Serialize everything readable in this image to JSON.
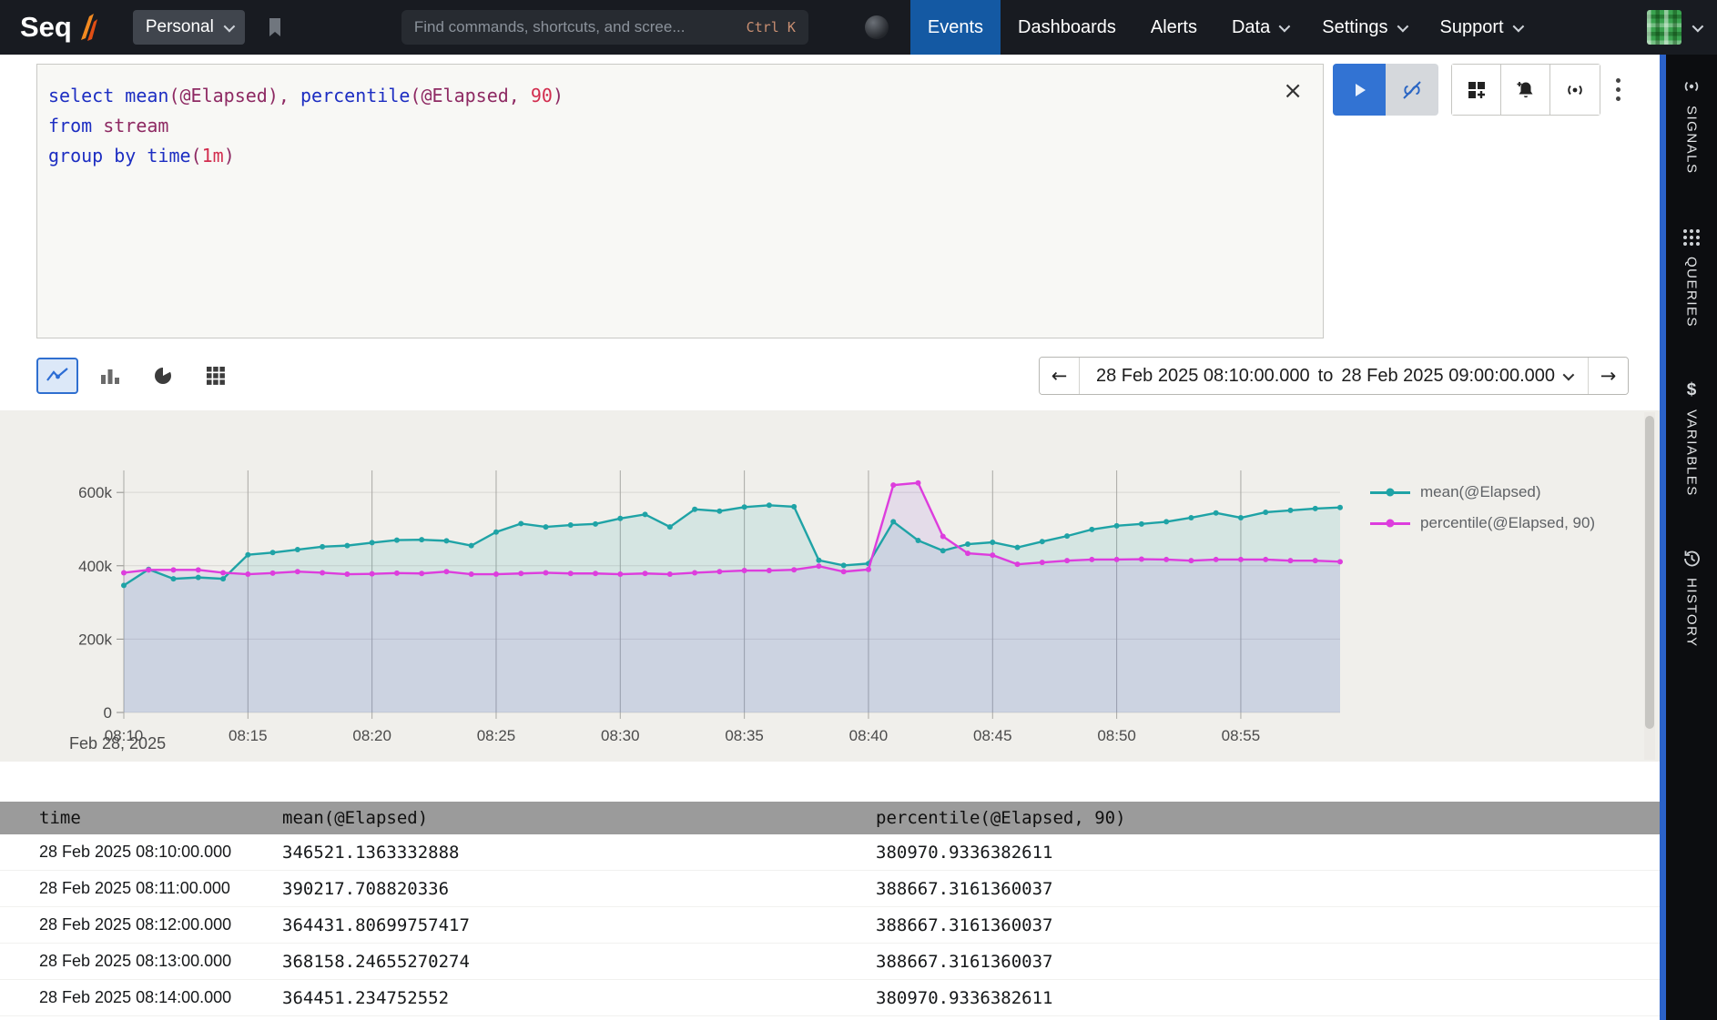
{
  "navbar": {
    "logo": "Seq",
    "workspace_button": "Personal",
    "search": {
      "placeholder": "Find commands, shortcuts, and scree...",
      "shortcut": "Ctrl K"
    },
    "items": [
      {
        "label": "Events",
        "active": true,
        "dropdown": false
      },
      {
        "label": "Dashboards",
        "active": false,
        "dropdown": false
      },
      {
        "label": "Alerts",
        "active": false,
        "dropdown": false
      },
      {
        "label": "Data",
        "active": false,
        "dropdown": true
      },
      {
        "label": "Settings",
        "active": false,
        "dropdown": true
      },
      {
        "label": "Support",
        "active": false,
        "dropdown": true
      }
    ]
  },
  "query_editor": {
    "colors": {
      "kw": "#1d2ec2",
      "id": "#8e2a63",
      "num": "#d22d4e"
    },
    "lines": [
      [
        {
          "t": "select ",
          "c": "kw"
        },
        {
          "t": "mean",
          "c": "kw"
        },
        {
          "t": "(@Elapsed)",
          "c": "id"
        },
        {
          "t": ", ",
          "c": "id"
        },
        {
          "t": "percentile",
          "c": "kw"
        },
        {
          "t": "(@Elapsed, ",
          "c": "id"
        },
        {
          "t": "90",
          "c": "num"
        },
        {
          "t": ")",
          "c": "id"
        }
      ],
      [
        {
          "t": "from ",
          "c": "kw"
        },
        {
          "t": "stream",
          "c": "id"
        }
      ],
      [
        {
          "t": "group by ",
          "c": "kw"
        },
        {
          "t": "time",
          "c": "kw"
        },
        {
          "t": "(",
          "c": "id"
        },
        {
          "t": "1m",
          "c": "num"
        },
        {
          "t": ")",
          "c": "id"
        }
      ]
    ]
  },
  "toolbar": {
    "range_from": "28 Feb 2025 08:10:00.000",
    "range_joiner": "to",
    "range_to": "28 Feb 2025 09:00:00.000",
    "prev_arrow": "←",
    "next_arrow": "→"
  },
  "chart_data": {
    "type": "line",
    "title": "",
    "xlabel": "",
    "ylabel": "",
    "caption": "Feb 28, 2025",
    "grid": true,
    "legend_position": "right",
    "ylim": [
      0,
      660000
    ],
    "yticks": [
      0,
      200000,
      400000,
      600000
    ],
    "ytick_labels": [
      "0",
      "200k",
      "400k",
      "600k"
    ],
    "x_tick_every": 5,
    "x_tick_labels": [
      "08:10",
      "08:15",
      "08:20",
      "08:25",
      "08:30",
      "08:35",
      "08:40",
      "08:45",
      "08:50",
      "08:55"
    ],
    "x": [
      "08:10",
      "08:11",
      "08:12",
      "08:13",
      "08:14",
      "08:15",
      "08:16",
      "08:17",
      "08:18",
      "08:19",
      "08:20",
      "08:21",
      "08:22",
      "08:23",
      "08:24",
      "08:25",
      "08:26",
      "08:27",
      "08:28",
      "08:29",
      "08:30",
      "08:31",
      "08:32",
      "08:33",
      "08:34",
      "08:35",
      "08:36",
      "08:37",
      "08:38",
      "08:39",
      "08:40",
      "08:41",
      "08:42",
      "08:43",
      "08:44",
      "08:45",
      "08:46",
      "08:47",
      "08:48",
      "08:49",
      "08:50",
      "08:51",
      "08:52",
      "08:53",
      "08:54",
      "08:55",
      "08:56",
      "08:57",
      "08:58",
      "08:59"
    ],
    "series": [
      {
        "name": "mean(@Elapsed)",
        "color": "#1fa3a6",
        "fill": "rgba(26,160,164,0.12)",
        "values": [
          346521,
          390218,
          364432,
          368158,
          364451,
          430000,
          436000,
          444000,
          452000,
          455000,
          463000,
          470000,
          471000,
          468000,
          455000,
          492000,
          515000,
          506000,
          511000,
          514000,
          529000,
          540000,
          506000,
          554000,
          549000,
          560000,
          565000,
          561000,
          415000,
          401000,
          406000,
          520000,
          469000,
          441000,
          459000,
          464000,
          450000,
          466000,
          481000,
          499000,
          509000,
          514000,
          520000,
          531000,
          544000,
          531000,
          546000,
          551000,
          556000,
          559000
        ]
      },
      {
        "name": "percentile(@Elapsed, 90)",
        "color": "#dd3ddd",
        "fill": "rgba(150,90,225,0.13)",
        "values": [
          380971,
          388667,
          388667,
          388667,
          380971,
          377000,
          380000,
          384000,
          381000,
          377000,
          378000,
          380000,
          379000,
          384000,
          377000,
          377000,
          379000,
          381000,
          379000,
          379000,
          377000,
          379000,
          377000,
          381000,
          384000,
          387000,
          387000,
          389000,
          399000,
          384000,
          390000,
          620000,
          626000,
          480000,
          434000,
          429000,
          404000,
          409000,
          414000,
          417000,
          417000,
          418000,
          417000,
          414000,
          417000,
          417000,
          417000,
          414000,
          414000,
          411000
        ]
      }
    ]
  },
  "table": {
    "columns": [
      "time",
      "mean(@Elapsed)",
      "percentile(@Elapsed, 90)"
    ],
    "rows": [
      {
        "time": "28 Feb 2025 08:10:00.000",
        "mean": "346521.1363332888",
        "percentile": "380970.9336382611"
      },
      {
        "time": "28 Feb 2025 08:11:00.000",
        "mean": "390217.708820336",
        "percentile": "388667.3161360037"
      },
      {
        "time": "28 Feb 2025 08:12:00.000",
        "mean": "364431.80699757417",
        "percentile": "388667.3161360037"
      },
      {
        "time": "28 Feb 2025 08:13:00.000",
        "mean": "368158.24655270274",
        "percentile": "388667.3161360037"
      },
      {
        "time": "28 Feb 2025 08:14:00.000",
        "mean": "364451.234752552",
        "percentile": "380970.9336382611"
      }
    ]
  },
  "sidebar": {
    "items": [
      {
        "label": "SIGNALS"
      },
      {
        "label": "QUERIES"
      },
      {
        "label": "VARIABLES"
      },
      {
        "label": "HISTORY"
      }
    ]
  }
}
